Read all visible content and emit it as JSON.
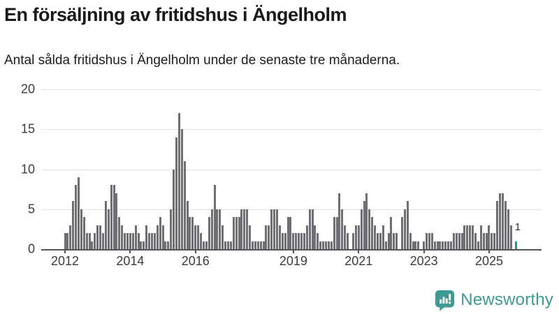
{
  "title": "En försäljning av fritidshus i Ängelholm",
  "subtitle": "Antal sålda fritidshus i Ängelholm under de senaste tre månaderna.",
  "chart_data": {
    "type": "bar",
    "title": "En försäljning av fritidshus i Ängelholm",
    "subtitle": "Antal sålda fritidshus i Ängelholm under de senaste tre månaderna.",
    "frequency": "monthly",
    "x_start": "2012-01",
    "x_tick_labels": [
      "2012",
      "2014",
      "2016",
      "2019",
      "2021",
      "2023",
      "2025"
    ],
    "x_tick_month_indices": [
      0,
      24,
      48,
      84,
      108,
      132,
      156
    ],
    "y_ticks": [
      0,
      5,
      10,
      15,
      20
    ],
    "ylim": [
      0,
      20
    ],
    "grid": true,
    "bar_color": "#6e6e74",
    "values": [
      2,
      2,
      3,
      6,
      8,
      9,
      5,
      4,
      2,
      2,
      1,
      2,
      3,
      3,
      2,
      6,
      5,
      8,
      8,
      7,
      4,
      3,
      2,
      2,
      2,
      2,
      3,
      2,
      1,
      1,
      3,
      2,
      2,
      2,
      3,
      4,
      3,
      1,
      1,
      5,
      10,
      14,
      17,
      15,
      11,
      6,
      4,
      4,
      3,
      3,
      2,
      1,
      1,
      4,
      5,
      8,
      5,
      5,
      3,
      1,
      1,
      1,
      4,
      4,
      4,
      5,
      5,
      5,
      3,
      1,
      1,
      1,
      1,
      1,
      3,
      3,
      5,
      5,
      5,
      3,
      2,
      2,
      4,
      4,
      2,
      2,
      2,
      2,
      2,
      3,
      5,
      5,
      3,
      2,
      1,
      1,
      1,
      1,
      1,
      4,
      4,
      7,
      5,
      3,
      2,
      0,
      2,
      3,
      3,
      5,
      6,
      7,
      5,
      4,
      3,
      2,
      2,
      3,
      1,
      2,
      4,
      2,
      2,
      0,
      4,
      5,
      6,
      2,
      1,
      1,
      1,
      0,
      1,
      2,
      2,
      2,
      1,
      1,
      1,
      1,
      1,
      1,
      1,
      2,
      2,
      2,
      2,
      3,
      3,
      3,
      3,
      2,
      1,
      3,
      2,
      2,
      3,
      2,
      2,
      6,
      7,
      7,
      6,
      5,
      3,
      0,
      1
    ],
    "highlight": {
      "index": 166,
      "value": 1,
      "label": "1",
      "color": "#199a94"
    }
  },
  "branding": {
    "logo_text": "Newsworthy",
    "logo_color": "#3e9b94",
    "icon": "bar-chart-speech-bubble-icon"
  }
}
